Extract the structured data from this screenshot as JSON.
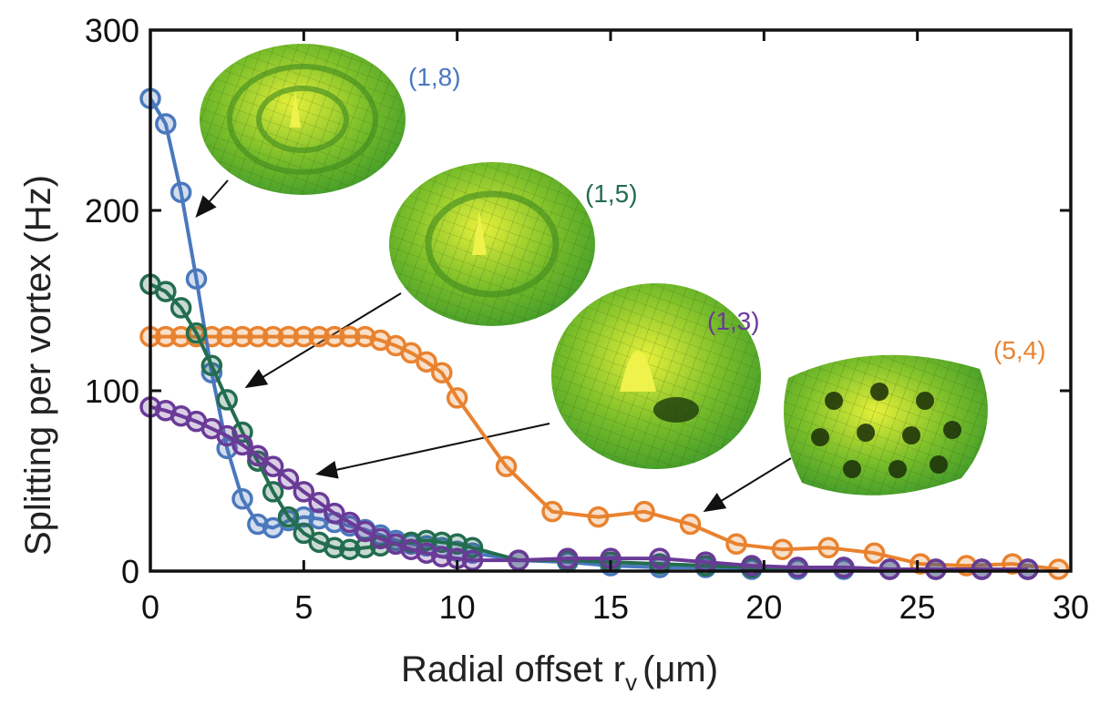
{
  "chart_data": {
    "type": "line",
    "title": "",
    "xlabel": "Radial offset r",
    "xlabel_sub": "v",
    "xlabel_unit": "(μm)",
    "ylabel": "Splitting per vortex (Hz)",
    "xlim": [
      0,
      30
    ],
    "ylim": [
      0,
      300
    ],
    "xticks": [
      "0",
      "5",
      "10",
      "15",
      "20",
      "25",
      "30"
    ],
    "yticks": [
      "0",
      "100",
      "200",
      "300"
    ],
    "grid": false,
    "series": [
      {
        "name": "(5,4)",
        "color": "#e9822f",
        "x": [
          0,
          0.5,
          1,
          1.5,
          2,
          2.5,
          3,
          3.5,
          4,
          4.5,
          5,
          5.5,
          6,
          6.5,
          7,
          7.5,
          8,
          8.5,
          9,
          9.5,
          10,
          11.6,
          13.1,
          14.6,
          16.1,
          17.6,
          19.1,
          20.6,
          22.1,
          23.6,
          25.1,
          26.6,
          28.1,
          29.6
        ],
        "y": [
          130,
          130,
          130,
          130,
          130,
          130,
          130,
          130,
          130,
          130,
          130,
          130,
          130,
          130,
          130,
          128,
          125,
          121,
          116,
          110,
          96,
          58,
          33,
          30,
          33,
          26,
          15,
          12,
          13,
          10,
          4,
          3,
          4,
          1
        ]
      },
      {
        "name": "(1,8)",
        "color": "#4a78bd",
        "x": [
          0,
          0.5,
          1,
          1.5,
          2,
          2.5,
          3,
          3.5,
          4,
          4.5,
          5,
          5.5,
          6,
          6.5,
          7,
          7.5,
          8,
          8.5,
          9,
          9.5,
          10,
          10.5,
          12,
          13.6,
          15,
          16.6,
          18.1,
          19.6,
          21.1,
          22.6,
          24.1,
          25.6,
          27.1,
          28.6
        ],
        "y": [
          262,
          248,
          210,
          162,
          110,
          68,
          40,
          26,
          24,
          28,
          30,
          29,
          27,
          25,
          23,
          20,
          17,
          15,
          14,
          13,
          11,
          10,
          6,
          5,
          3,
          2,
          2,
          1,
          1,
          1,
          1,
          1,
          1,
          1
        ]
      },
      {
        "name": "(1,5)",
        "color": "#236d4f",
        "x": [
          0,
          0.5,
          1,
          1.5,
          2,
          2.5,
          3,
          3.5,
          4,
          4.5,
          5,
          5.5,
          6,
          6.5,
          7,
          7.5,
          8,
          8.5,
          9,
          9.5,
          10,
          10.5,
          12,
          13.6,
          15,
          16.6,
          18.1,
          19.6,
          21.1,
          22.6,
          24.1,
          25.6,
          27.1,
          28.6
        ],
        "y": [
          159,
          155,
          146,
          132,
          114,
          95,
          77,
          61,
          44,
          30,
          21,
          16,
          13,
          12,
          13,
          14,
          15,
          16,
          17,
          16,
          15,
          13,
          6,
          6,
          5,
          4,
          3,
          2,
          2,
          2,
          1,
          1,
          1,
          1
        ]
      },
      {
        "name": "(1,3)",
        "color": "#6a3a97",
        "x": [
          0,
          0.5,
          1,
          1.5,
          2,
          2.5,
          3,
          3.5,
          4,
          4.5,
          5,
          5.5,
          6,
          6.5,
          7,
          7.5,
          8,
          8.5,
          9,
          9.5,
          10,
          10.5,
          12,
          13.6,
          15,
          16.6,
          18.1,
          19.6,
          21.1,
          22.6,
          24.1,
          25.6,
          27.1,
          28.6
        ],
        "y": [
          91,
          89,
          86,
          83,
          79,
          75,
          70,
          64,
          58,
          51,
          44,
          38,
          32,
          27,
          22,
          18,
          15,
          12,
          10,
          8,
          7,
          6,
          6,
          7,
          7,
          7,
          5,
          3,
          2,
          2,
          1,
          1,
          1,
          1
        ]
      }
    ],
    "annotations": [
      {
        "text": "(1,8)",
        "series": "(1,8)"
      },
      {
        "text": "(1,5)",
        "series": "(1,5)"
      },
      {
        "text": "(1,3)",
        "series": "(1,3)"
      },
      {
        "text": "(5,4)",
        "series": "(5,4)"
      }
    ]
  }
}
